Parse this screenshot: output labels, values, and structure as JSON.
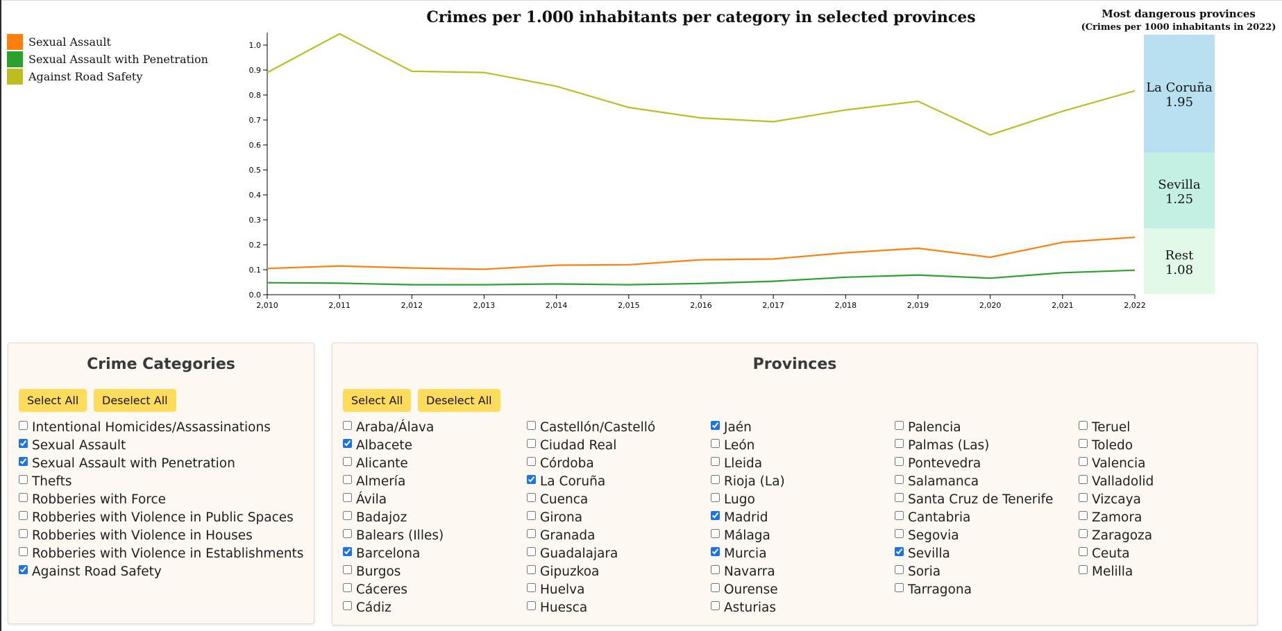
{
  "chart_data": {
    "type": "line",
    "title": "Crimes per 1.000 inhabitants per category in selected provinces",
    "x": [
      2010,
      2011,
      2012,
      2013,
      2014,
      2015,
      2016,
      2017,
      2018,
      2019,
      2020,
      2021,
      2022
    ],
    "x_tick_labels": [
      "2,010",
      "2,011",
      "2,012",
      "2,013",
      "2,014",
      "2,015",
      "2,016",
      "2,017",
      "2,018",
      "2,019",
      "2,020",
      "2,021",
      "2,022"
    ],
    "ylim": [
      0,
      1.05
    ],
    "y_ticks": [
      0.0,
      0.1,
      0.2,
      0.3,
      0.4,
      0.5,
      0.6,
      0.7,
      0.8,
      0.9,
      1.0
    ],
    "y_tick_labels": [
      "0.0",
      "0.1",
      "0.2",
      "0.3",
      "0.4",
      "0.5",
      "0.6",
      "0.7",
      "0.8",
      "0.9",
      "1.0"
    ],
    "legend_position": "top-left",
    "series": [
      {
        "name": "Sexual Assault",
        "color": "#ff7f0e",
        "values": [
          0.105,
          0.115,
          0.107,
          0.102,
          0.118,
          0.12,
          0.14,
          0.143,
          0.168,
          0.186,
          0.15,
          0.21,
          0.23
        ]
      },
      {
        "name": "Sexual Assault with Penetration",
        "color": "#2ca02c",
        "values": [
          0.048,
          0.046,
          0.04,
          0.04,
          0.043,
          0.04,
          0.045,
          0.054,
          0.07,
          0.079,
          0.066,
          0.088,
          0.098
        ]
      },
      {
        "name": "Against Road Safety",
        "color": "#bcbd22",
        "values": [
          0.89,
          1.045,
          0.895,
          0.89,
          0.835,
          0.75,
          0.708,
          0.693,
          0.74,
          0.775,
          0.64,
          0.735,
          0.817
        ]
      }
    ],
    "side_chart": {
      "type": "stacked-bar",
      "title": "Most dangerous provinces",
      "subtitle": "(Crimes per 1000 inhabitants in 2022)",
      "segments": [
        {
          "name": "La Coruña",
          "value": 1.95,
          "label": "1.95",
          "color": "#b8e0f0"
        },
        {
          "name": "Sevilla",
          "value": 1.25,
          "label": "1.25",
          "color": "#c4f0e4"
        },
        {
          "name": "Rest",
          "value": 1.08,
          "label": "1.08",
          "color": "#e2f9e8"
        }
      ]
    }
  },
  "categories_panel": {
    "title": "Crime Categories",
    "select_all": "Select All",
    "deselect_all": "Deselect All",
    "items": [
      {
        "label": "Intentional Homicides/Assassinations",
        "checked": false
      },
      {
        "label": "Sexual Assault",
        "checked": true
      },
      {
        "label": "Sexual Assault with Penetration",
        "checked": true
      },
      {
        "label": "Thefts",
        "checked": false
      },
      {
        "label": "Robberies with Force",
        "checked": false
      },
      {
        "label": "Robberies with Violence in Public Spaces",
        "checked": false
      },
      {
        "label": "Robberies with Violence in Houses",
        "checked": false
      },
      {
        "label": "Robberies with Violence in Establishments",
        "checked": false
      },
      {
        "label": "Against Road Safety",
        "checked": true
      }
    ]
  },
  "provinces_panel": {
    "title": "Provinces",
    "select_all": "Select All",
    "deselect_all": "Deselect All",
    "columns": [
      [
        {
          "label": "Araba/Álava",
          "checked": false
        },
        {
          "label": "Albacete",
          "checked": true
        },
        {
          "label": "Alicante",
          "checked": false
        },
        {
          "label": "Almería",
          "checked": false
        },
        {
          "label": "Ávila",
          "checked": false
        },
        {
          "label": "Badajoz",
          "checked": false
        },
        {
          "label": "Balears (Illes)",
          "checked": false
        },
        {
          "label": "Barcelona",
          "checked": true
        },
        {
          "label": "Burgos",
          "checked": false
        },
        {
          "label": "Cáceres",
          "checked": false
        },
        {
          "label": "Cádiz",
          "checked": false
        }
      ],
      [
        {
          "label": "Castellón/Castelló",
          "checked": false
        },
        {
          "label": "Ciudad Real",
          "checked": false
        },
        {
          "label": "Córdoba",
          "checked": false
        },
        {
          "label": "La Coruña",
          "checked": true
        },
        {
          "label": "Cuenca",
          "checked": false
        },
        {
          "label": "Girona",
          "checked": false
        },
        {
          "label": "Granada",
          "checked": false
        },
        {
          "label": "Guadalajara",
          "checked": false
        },
        {
          "label": "Gipuzkoa",
          "checked": false
        },
        {
          "label": "Huelva",
          "checked": false
        },
        {
          "label": "Huesca",
          "checked": false
        }
      ],
      [
        {
          "label": "Jaén",
          "checked": true
        },
        {
          "label": "León",
          "checked": false
        },
        {
          "label": "Lleida",
          "checked": false
        },
        {
          "label": "Rioja (La)",
          "checked": false
        },
        {
          "label": "Lugo",
          "checked": false
        },
        {
          "label": "Madrid",
          "checked": true
        },
        {
          "label": "Málaga",
          "checked": false
        },
        {
          "label": "Murcia",
          "checked": true
        },
        {
          "label": "Navarra",
          "checked": false
        },
        {
          "label": "Ourense",
          "checked": false
        },
        {
          "label": "Asturias",
          "checked": false
        }
      ],
      [
        {
          "label": "Palencia",
          "checked": false
        },
        {
          "label": "Palmas (Las)",
          "checked": false
        },
        {
          "label": "Pontevedra",
          "checked": false
        },
        {
          "label": "Salamanca",
          "checked": false
        },
        {
          "label": "Santa Cruz de Tenerife",
          "checked": false
        },
        {
          "label": "Cantabria",
          "checked": false
        },
        {
          "label": "Segovia",
          "checked": false
        },
        {
          "label": "Sevilla",
          "checked": true
        },
        {
          "label": "Soria",
          "checked": false
        },
        {
          "label": "Tarragona",
          "checked": false
        }
      ],
      [
        {
          "label": "Teruel",
          "checked": false
        },
        {
          "label": "Toledo",
          "checked": false
        },
        {
          "label": "Valencia",
          "checked": false
        },
        {
          "label": "Valladolid",
          "checked": false
        },
        {
          "label": "Vizcaya",
          "checked": false
        },
        {
          "label": "Zamora",
          "checked": false
        },
        {
          "label": "Zaragoza",
          "checked": false
        },
        {
          "label": "Ceuta",
          "checked": false
        },
        {
          "label": "Melilla",
          "checked": false
        }
      ]
    ]
  }
}
